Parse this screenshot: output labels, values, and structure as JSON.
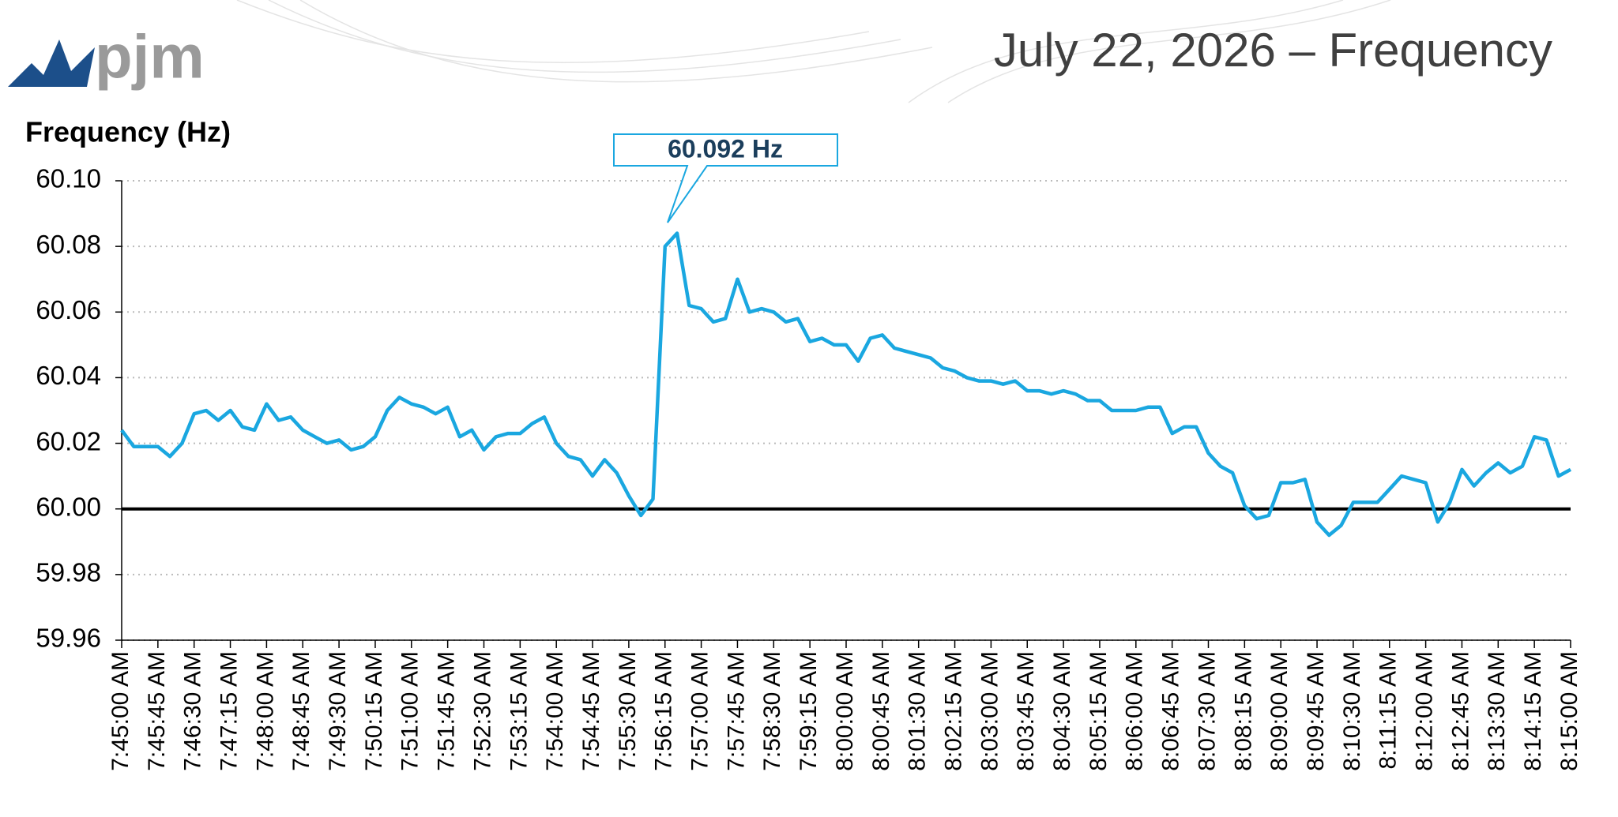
{
  "logo": "pjm",
  "chart_data": {
    "type": "line",
    "title": "July 22, 2026 – Frequency",
    "y_label": "Frequency (Hz)",
    "annotation": "60.092 Hz",
    "categories": [
      "7:45:00 AM",
      null,
      null,
      "7:45:45 AM",
      null,
      null,
      "7:46:30 AM",
      null,
      null,
      "7:47:15 AM",
      null,
      null,
      "7:48:00 AM",
      null,
      null,
      "7:48:45 AM",
      null,
      null,
      "7:49:30 AM",
      null,
      null,
      "7:50:15 AM",
      null,
      null,
      "7:51:00 AM",
      null,
      null,
      "7:51:45 AM",
      null,
      null,
      "7:52:30 AM",
      null,
      null,
      "7:53:15 AM",
      null,
      null,
      "7:54:00 AM",
      null,
      null,
      "7:54:45 AM",
      null,
      null,
      "7:55:30 AM",
      null,
      null,
      "7:56:15 AM",
      null,
      null,
      "7:57:00 AM",
      null,
      null,
      "7:57:45 AM",
      null,
      null,
      "7:58:30 AM",
      null,
      null,
      "7:59:15 AM",
      null,
      null,
      "8:00:00 AM",
      null,
      null,
      "8:00:45 AM",
      null,
      null,
      "8:01:30 AM",
      null,
      null,
      "8:02:15 AM",
      null,
      null,
      "8:03:00 AM",
      null,
      null,
      "8:03:45 AM",
      null,
      null,
      "8:04:30 AM",
      null,
      null,
      "8:05:15 AM",
      null,
      null,
      "8:06:00 AM",
      null,
      null,
      "8:06:45 AM",
      null,
      null,
      "8:07:30 AM",
      null,
      null,
      "8:08:15 AM",
      null,
      null,
      "8:09:00 AM",
      null,
      null,
      "8:09:45 AM",
      null,
      null,
      "8:10:30 AM",
      null,
      null,
      "8:11:15 AM",
      null,
      null,
      "8:12:00 AM",
      null,
      null,
      "8:12:45 AM",
      null,
      null,
      "8:13:30 AM",
      null,
      null,
      "8:14:15 AM",
      null,
      null,
      "8:15:00 AM"
    ],
    "series": [
      {
        "name": "Frequency",
        "color": "#1aa7e0",
        "values": [
          60.024,
          60.019,
          60.019,
          60.019,
          60.016,
          60.02,
          60.029,
          60.03,
          60.027,
          60.03,
          60.025,
          60.024,
          60.032,
          60.027,
          60.028,
          60.024,
          60.022,
          60.02,
          60.021,
          60.018,
          60.019,
          60.022,
          60.03,
          60.034,
          60.032,
          60.031,
          60.029,
          60.031,
          60.022,
          60.024,
          60.018,
          60.022,
          60.023,
          60.023,
          60.026,
          60.028,
          60.02,
          60.016,
          60.015,
          60.01,
          60.015,
          60.011,
          60.004,
          59.998,
          60.003,
          60.08,
          60.084,
          60.062,
          60.061,
          60.057,
          60.058,
          60.07,
          60.06,
          60.061,
          60.06,
          60.057,
          60.058,
          60.051,
          60.052,
          60.05,
          60.05,
          60.045,
          60.052,
          60.053,
          60.049,
          60.048,
          60.047,
          60.046,
          60.043,
          60.042,
          60.04,
          60.039,
          60.039,
          60.038,
          60.039,
          60.036,
          60.036,
          60.035,
          60.036,
          60.035,
          60.033,
          60.033,
          60.03,
          60.03,
          60.03,
          60.031,
          60.031,
          60.023,
          60.025,
          60.025,
          60.017,
          60.013,
          60.011,
          60.001,
          59.997,
          59.998,
          60.008,
          60.008,
          60.009,
          59.996,
          59.992,
          59.995,
          60.002,
          60.002,
          60.002,
          60.006,
          60.01,
          60.009,
          60.008,
          59.996,
          60.002,
          60.012,
          60.007,
          60.011,
          60.014,
          60.011,
          60.013,
          60.022,
          60.021,
          60.01,
          60.012
        ]
      }
    ],
    "ylim": [
      59.96,
      60.1
    ],
    "yticks": [
      59.96,
      59.98,
      {
        "value": 60.0,
        "label": "60.00"
      },
      60.02,
      60.04,
      60.06,
      60.08,
      {
        "value": 60.1,
        "label": "60.10"
      }
    ],
    "reference_line": 60,
    "grid": true
  }
}
